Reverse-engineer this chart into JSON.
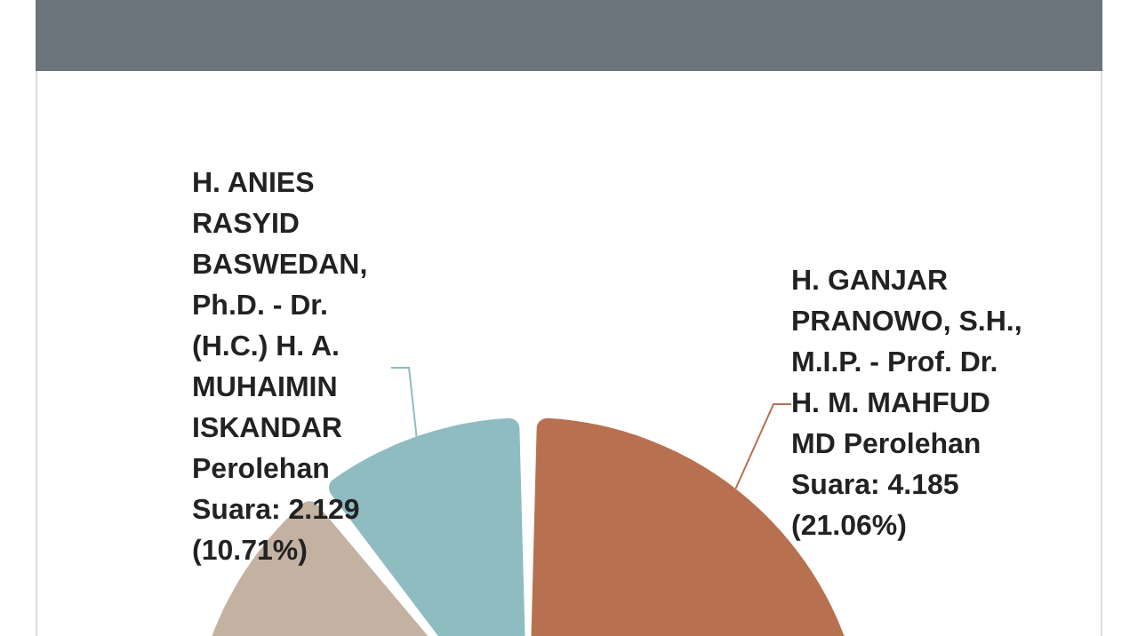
{
  "chart_data": {
    "type": "pie",
    "categories": [
      "H. GANJAR PRANOWO, S.H., M.I.P. - Prof. Dr. H. M. MAHFUD MD",
      null,
      "H. ANIES RASYID BASWEDAN, Ph.D. - Dr. (H.C.) H. A. MUHAIMIN ISKANDAR"
    ],
    "values": [
      21.06,
      68.23,
      10.71
    ],
    "value_labels": [
      "Perolehan Suara: 4.185 (21.06%)",
      null,
      "Perolehan Suara: 2.129 (10.71%)"
    ],
    "colors": [
      "#b87150",
      "#c3b2a2",
      "#8fbcc0"
    ],
    "legend": false
  }
}
